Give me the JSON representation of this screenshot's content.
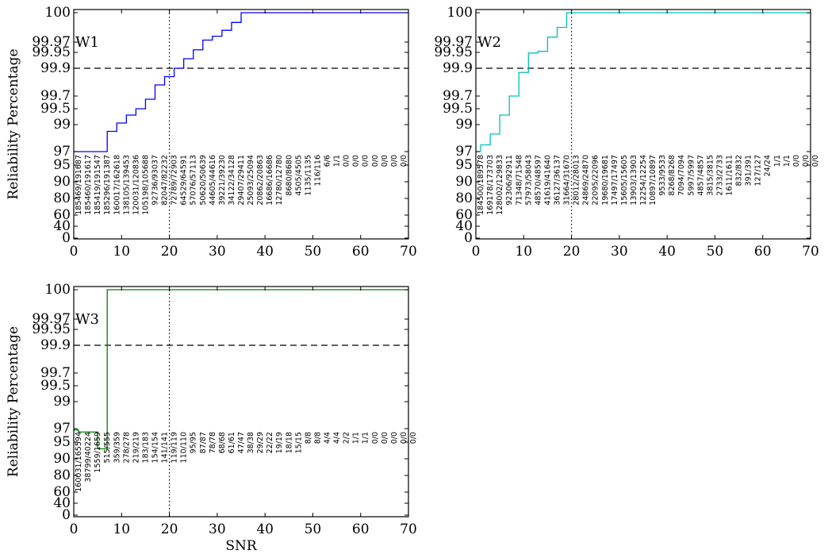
{
  "chart_data": [
    {
      "type": "line",
      "annotation": "W1",
      "xlabel": "",
      "ylabel": "Reliability Percentage",
      "xlim": [
        0,
        70
      ],
      "x_ticks": [
        "0",
        "10",
        "20",
        "30",
        "40",
        "50",
        "60",
        "70"
      ],
      "y_ticks": [
        "0",
        "40",
        "60",
        "80",
        "90",
        "95",
        "97",
        "99",
        "99.5",
        "99.7",
        "99.9",
        "99.95",
        "99.97",
        "100"
      ],
      "color": "#0000ff",
      "threshold_line": 99.9,
      "vertical_marker": 20,
      "series": [
        {
          "x": [
            0,
            1,
            3,
            5,
            7,
            9,
            11,
            13,
            15,
            17,
            19,
            21,
            23,
            25,
            27,
            29,
            31,
            33,
            35,
            70
          ],
          "y": [
            97.0,
            97.0,
            97.0,
            97.0,
            98.5,
            99.05,
            99.3,
            99.5,
            99.65,
            99.78,
            99.84,
            99.9,
            99.93,
            99.955,
            99.972,
            99.976,
            99.982,
            99.99,
            100,
            100
          ]
        }
      ],
      "counts": [
        "185469/191687",
        "185460/191617",
        "185419/191547",
        "185296/191387",
        "160017/162618",
        "138105/139453",
        "120031/120836",
        "105198/105688",
        "92736/93037",
        "82047/82232",
        "72789/72903",
        "64529/64591",
        "57076/57113",
        "50620/50639",
        "44605/44616",
        "39221/39230",
        "34122/34128",
        "29407/29411",
        "25093/25094",
        "20862/20863",
        "16686/16686",
        "12780/12780",
        "8680/8680",
        "4505/4505",
        "1135/1135",
        "116/116",
        "6/6",
        "1/1",
        "0/0",
        "0/0",
        "0/0",
        "0/0",
        "0/0",
        "0/0",
        "0/0"
      ]
    },
    {
      "type": "line",
      "annotation": "W2",
      "xlabel": "",
      "ylabel": "",
      "xlim": [
        0,
        70
      ],
      "x_ticks": [
        "0",
        "10",
        "20",
        "30",
        "40",
        "50",
        "60",
        "70"
      ],
      "y_ticks": [
        "0",
        "40",
        "60",
        "80",
        "90",
        "95",
        "97",
        "99",
        "99.5",
        "99.7",
        "99.9",
        "99.95",
        "99.97",
        "100"
      ],
      "color": "#00bfbf",
      "threshold_line": 99.9,
      "vertical_marker": 20,
      "series": [
        {
          "x": [
            0,
            1,
            3,
            5,
            7,
            9,
            11,
            13,
            15,
            17,
            19,
            70
          ],
          "y": [
            97.0,
            97.5,
            98.3,
            99.3,
            99.7,
            99.87,
            99.948,
            99.952,
            99.975,
            99.985,
            100,
            100
          ]
        }
      ],
      "counts": [
        "184500/189578",
        "169178/173703",
        "128002/129833",
        "92306/92911",
        "71348/71548",
        "57973/58043",
        "48570/48597",
        "41619/41640",
        "36127/36137",
        "31664/31670",
        "28012/28013",
        "24869/24870",
        "22095/22096",
        "19680/19681",
        "17497/17497",
        "15605/15605",
        "13903/13903",
        "12254/12254",
        "10897/10897",
        "9533/9533",
        "8268/8268",
        "7094/7094",
        "5997/5997",
        "4857/4857",
        "3815/3815",
        "2733/2733",
        "1611/1611",
        "832/832",
        "391/391",
        "127/127",
        "24/24",
        "1/1",
        "1/1",
        "0/0",
        "0/0",
        "0/0"
      ]
    },
    {
      "type": "line",
      "annotation": "W3",
      "xlabel": "SNR",
      "ylabel": "Reliability Percentage",
      "xlim": [
        0,
        70
      ],
      "x_ticks": [
        "0",
        "10",
        "20",
        "30",
        "40",
        "50",
        "60",
        "70"
      ],
      "y_ticks": [
        "0",
        "40",
        "60",
        "80",
        "90",
        "95",
        "97",
        "99",
        "99.5",
        "99.7",
        "99.9",
        "99.95",
        "99.97",
        "100"
      ],
      "color": "#008000",
      "threshold_line": 99.9,
      "vertical_marker": 20,
      "series": [
        {
          "x": [
            0,
            1,
            3,
            5,
            7,
            70
          ],
          "y": [
            96.8,
            96.5,
            96.5,
            93.0,
            100,
            100
          ]
        }
      ],
      "counts": [
        "160031/165594",
        "38799/40224",
        "1559/1659",
        "515/555",
        "359/359",
        "278/278",
        "219/219",
        "183/183",
        "154/154",
        "141/141",
        "119/119",
        "110/110",
        "95/95",
        "87/87",
        "78/78",
        "68/68",
        "61/61",
        "47/47",
        "38/38",
        "29/29",
        "22/22",
        "19/19",
        "18/18",
        "15/15",
        "8/8",
        "8/8",
        "4/4",
        "4/4",
        "2/2",
        "1/1",
        "1/1",
        "0/0",
        "0/0",
        "0/0",
        "0/0",
        "0/0"
      ]
    }
  ]
}
